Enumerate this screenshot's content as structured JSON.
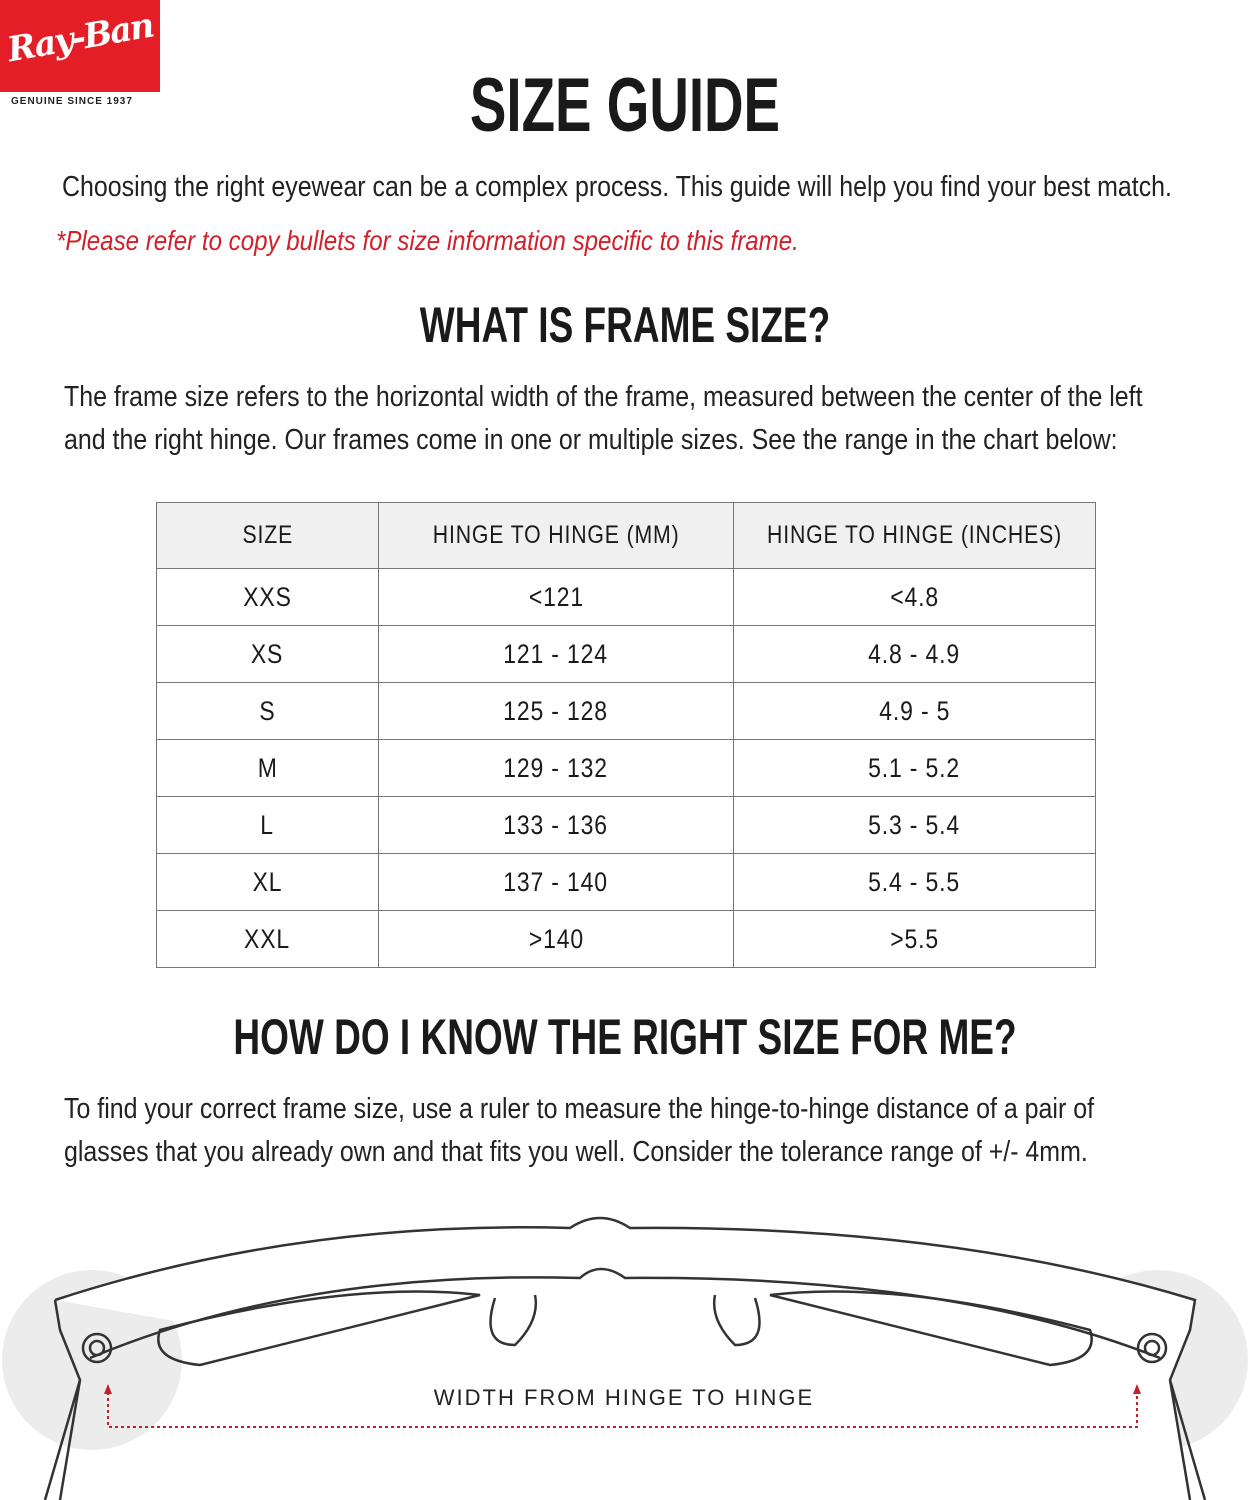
{
  "brand": {
    "logo_text": "Ray-Ban",
    "tagline": "GENUINE SINCE 1937",
    "color": "#e41e26"
  },
  "title": "SIZE GUIDE",
  "intro": "Choosing the right eyewear can be a complex process. This guide will help you find your best match.",
  "note": "*Please refer to copy bullets for size information specific to this frame.",
  "section1": {
    "heading": "WHAT IS FRAME SIZE?",
    "lines": [
      "The frame size refers to the horizontal width of the frame, measured between the center of the left",
      "and the right hinge. Our frames come in one or multiple sizes. See the range in the chart below:"
    ]
  },
  "table": {
    "headers": [
      "SIZE",
      "HINGE TO HINGE (MM)",
      "HINGE TO HINGE (INCHES)"
    ],
    "rows": [
      [
        "XXS",
        "<121",
        "<4.8"
      ],
      [
        "XS",
        "121 - 124",
        "4.8 - 4.9"
      ],
      [
        "S",
        "125 - 128",
        "4.9 - 5"
      ],
      [
        "M",
        "129 - 132",
        "5.1 - 5.2"
      ],
      [
        "L",
        "133 - 136",
        "5.3 - 5.4"
      ],
      [
        "XL",
        "137 - 140",
        "5.4 - 5.5"
      ],
      [
        "XXL",
        ">140",
        ">5.5"
      ]
    ]
  },
  "section2": {
    "heading": "HOW DO I KNOW THE RIGHT SIZE FOR ME?",
    "lines": [
      "To find your correct frame size, use a ruler to measure the hinge-to-hinge distance of a pair of",
      "glasses that you already own and that fits you well. Consider the tolerance range of +/- 4mm."
    ]
  },
  "illustration": {
    "label": "WIDTH FROM HINGE TO HINGE",
    "arrow_color": "#c0202a"
  }
}
